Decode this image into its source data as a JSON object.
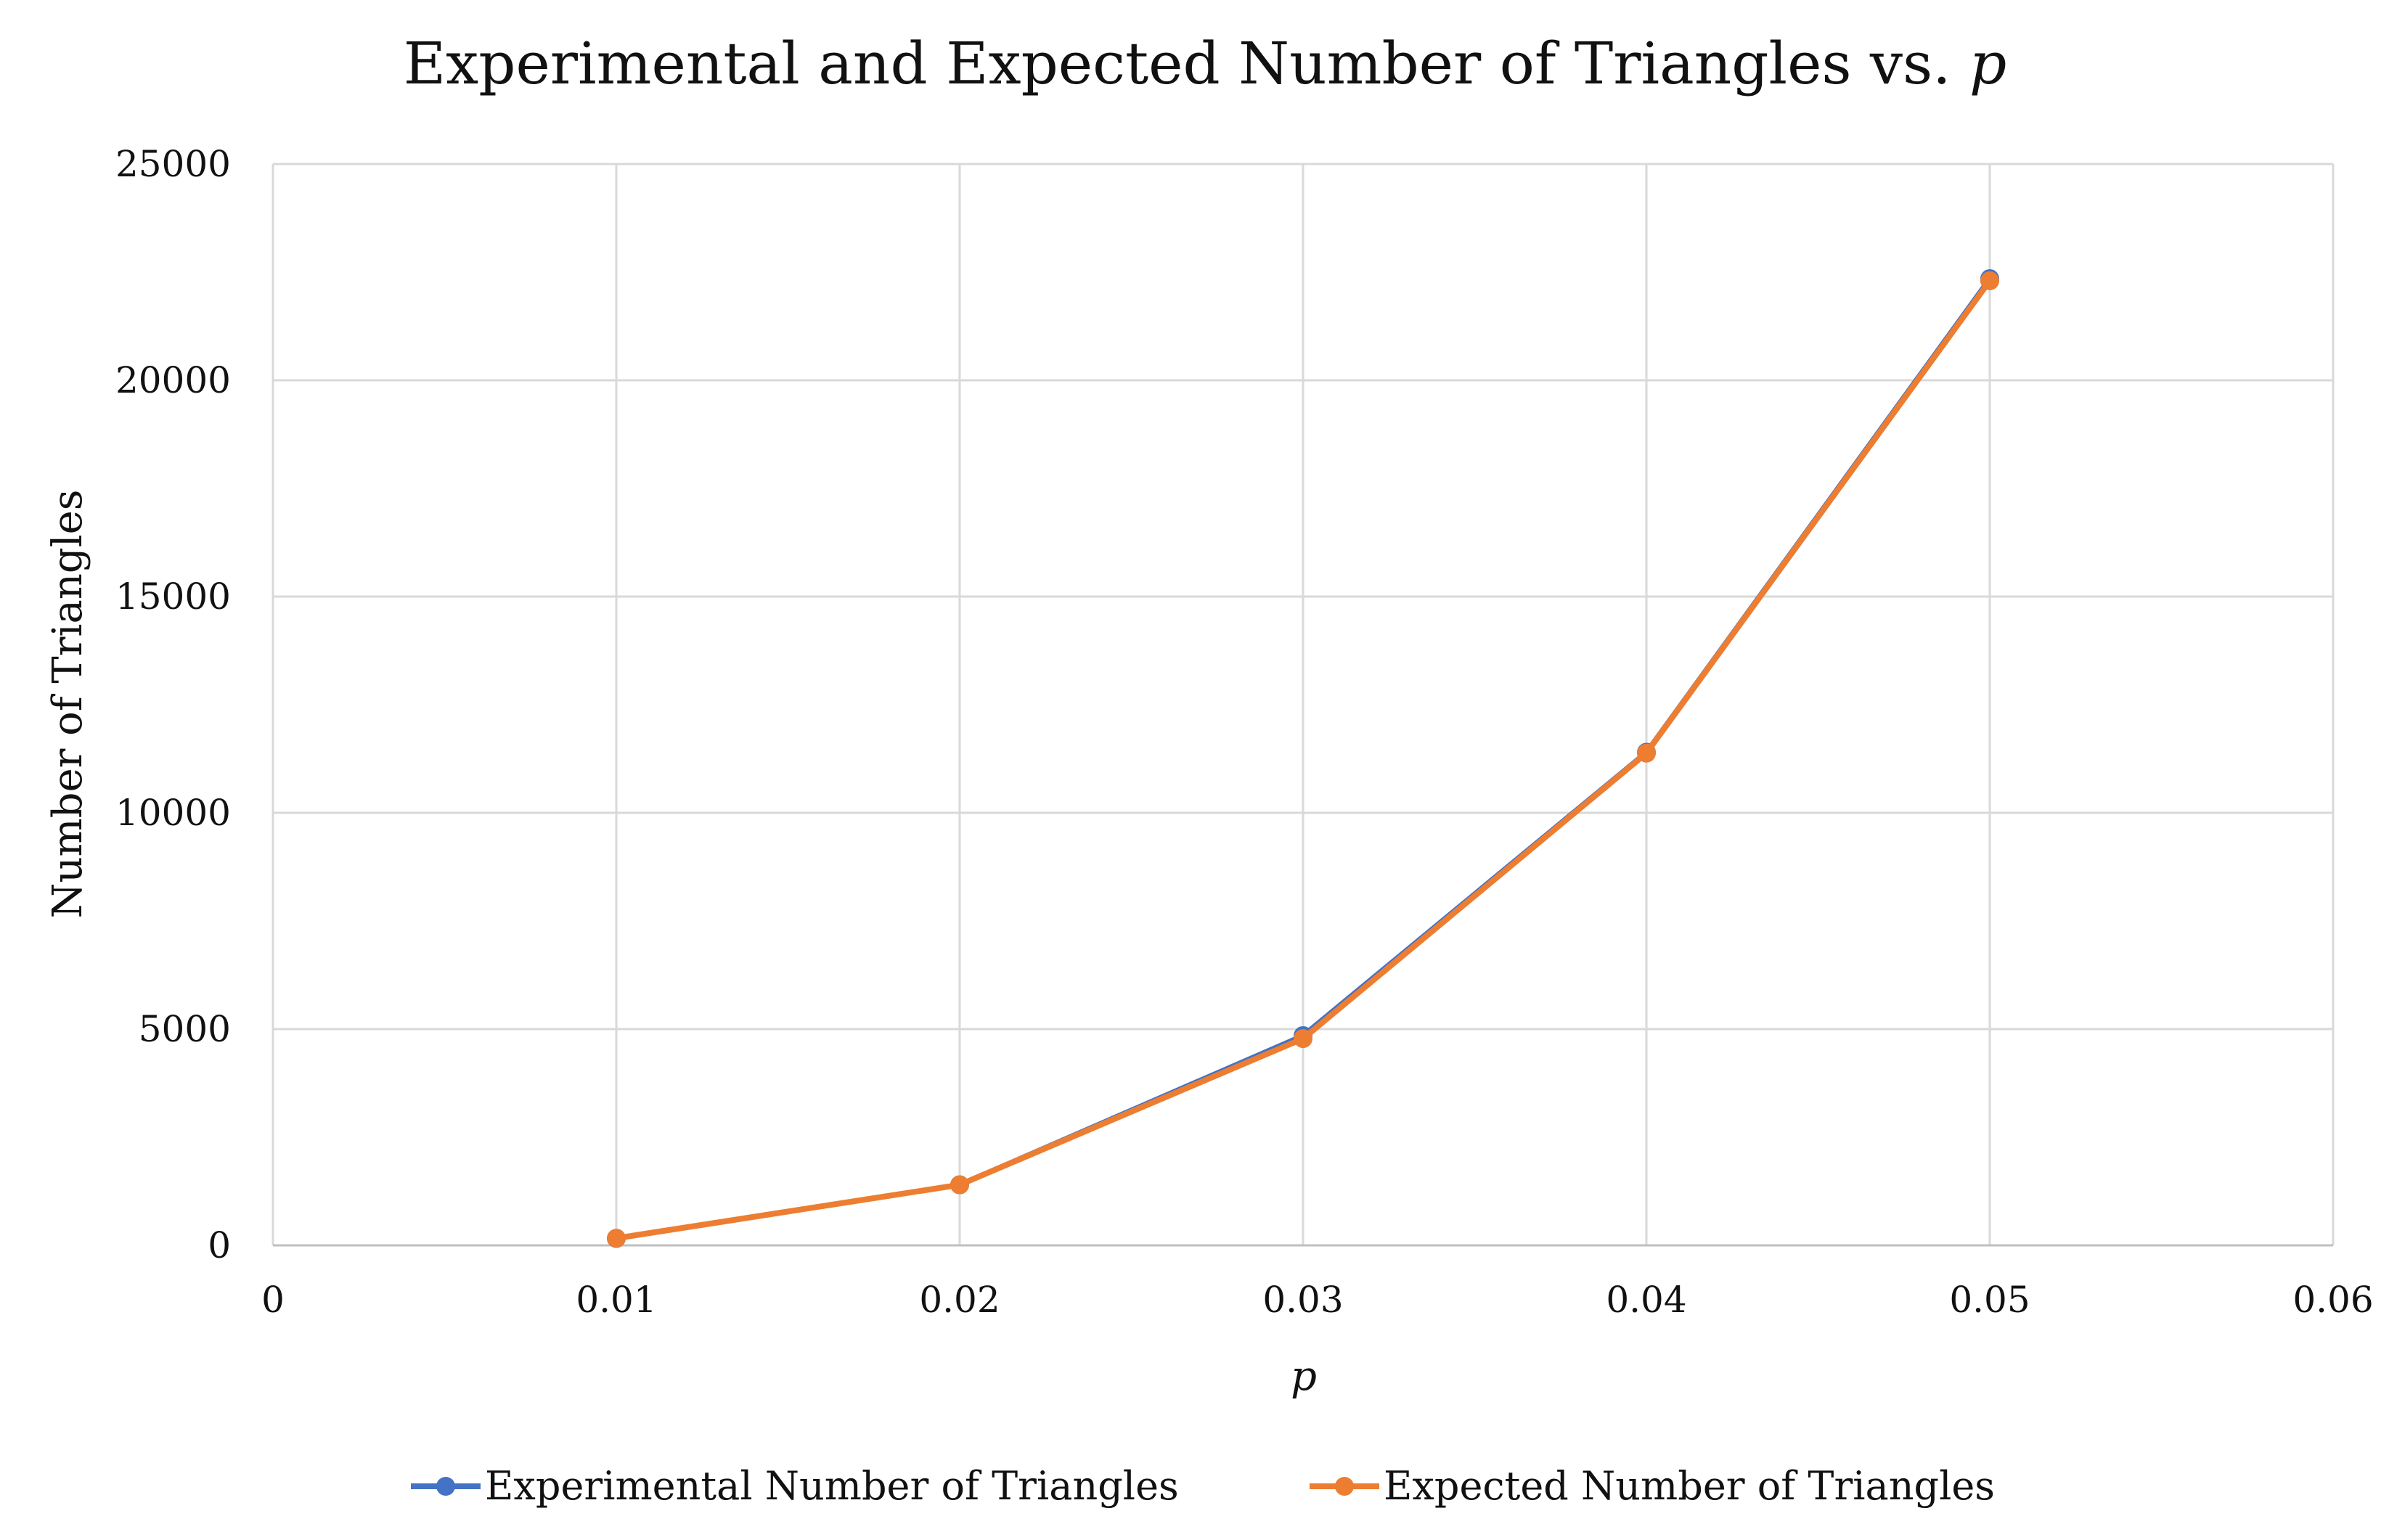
{
  "chart_data": {
    "type": "line",
    "title": "Experimental and Expected Number of Triangles vs.",
    "title_variable": "p",
    "xlabel": "p",
    "ylabel": "Number of Triangles",
    "xlim": [
      0,
      0.06
    ],
    "ylim": [
      0,
      25000
    ],
    "x_ticks": [
      "0",
      "0.01",
      "0.02",
      "0.03",
      "0.04",
      "0.05",
      "0.06"
    ],
    "x_tick_values": [
      0,
      0.01,
      0.02,
      0.03,
      0.04,
      0.05,
      0.06
    ],
    "y_ticks": [
      "0",
      "5000",
      "10000",
      "15000",
      "20000",
      "25000"
    ],
    "y_tick_values": [
      0,
      5000,
      10000,
      15000,
      20000,
      25000
    ],
    "grid": true,
    "legend_position": "bottom",
    "x": [
      0.01,
      0.02,
      0.03,
      0.04,
      0.05
    ],
    "series": [
      {
        "name": "Experimental Number of Triangles",
        "color": "#4472C4",
        "values": [
          160,
          1400,
          4850,
          11400,
          22350
        ]
      },
      {
        "name": "Expected Number of Triangles",
        "color": "#ED7D31",
        "values": [
          165,
          1400,
          4780,
          11380,
          22300
        ]
      }
    ]
  }
}
